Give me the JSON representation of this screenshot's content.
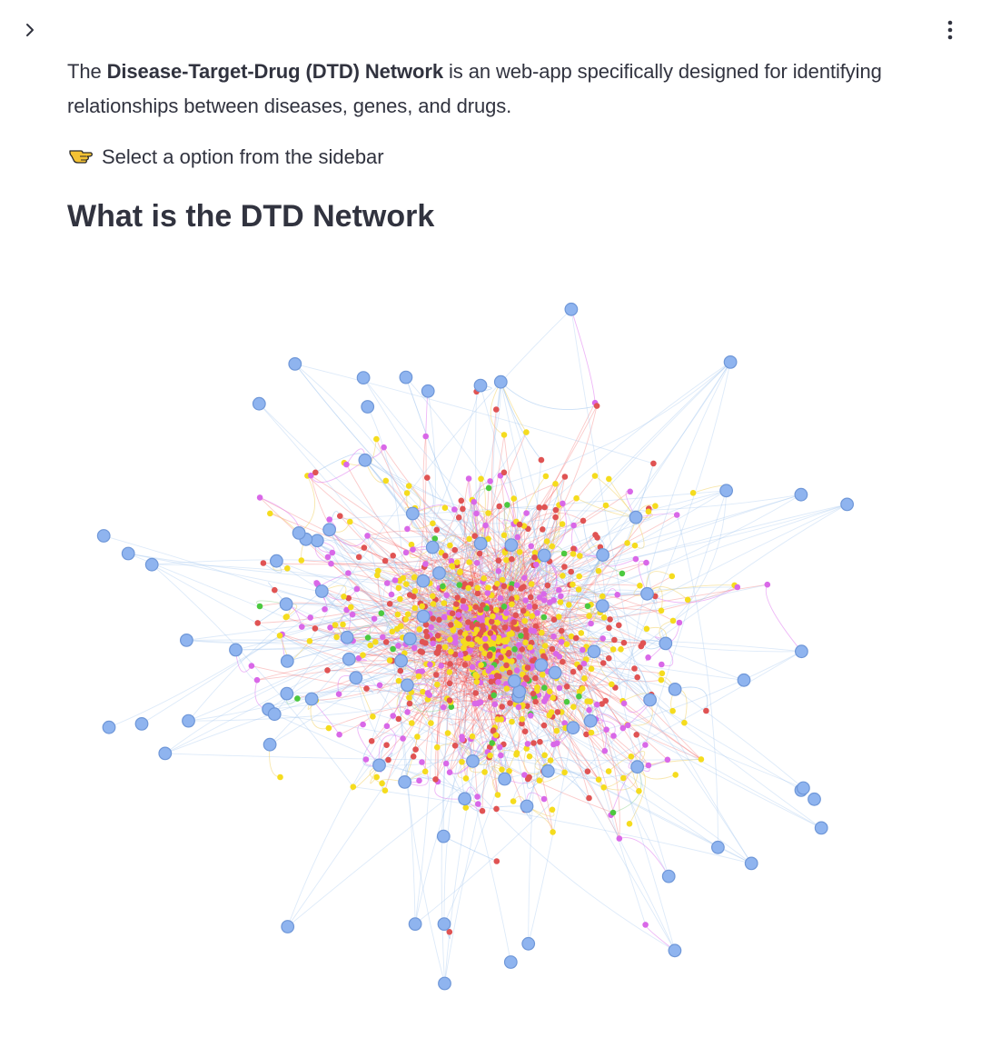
{
  "topbar": {
    "sidebar_toggle_icon": "chevron-right-icon",
    "menu_icon": "kebab-menu-icon"
  },
  "main": {
    "intro": {
      "prefix": "The ",
      "app_name": "Disease-Target-Drug (DTD) Network",
      "suffix": " is an web-app specifically designed for identifying relationships between diseases, genes, and drugs."
    },
    "hint": {
      "icon": "pointing-hand-icon",
      "text": "Select a option from the sidebar"
    },
    "section_title": "What is the DTD Network"
  },
  "network": {
    "node_colors": {
      "disease": "#8fb4ef",
      "target": "#d968e8",
      "drug": "#f5dc1e",
      "gene": "#e05353",
      "other": "#4cc93f"
    },
    "edge_colors": {
      "red": "#f04040",
      "blue": "#9ec4ee",
      "pink": "#e07bf0",
      "yellow": "#f3d46a",
      "green": "#9dd99a"
    }
  }
}
